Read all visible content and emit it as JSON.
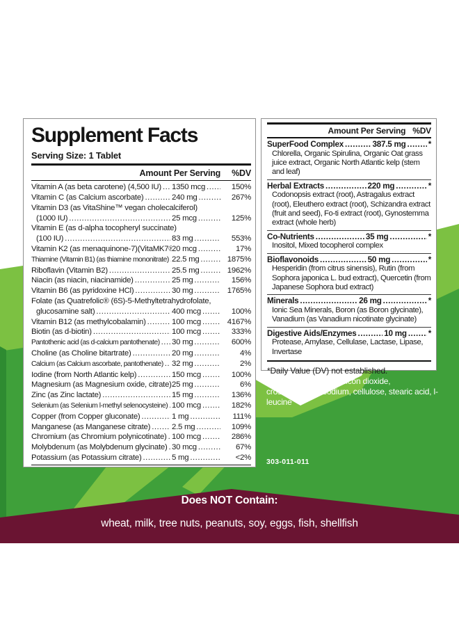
{
  "colors": {
    "green_light": "#7CC142",
    "green_main": "#3FA03A",
    "green_dark": "#2E8B31",
    "maroon": "#6A1432"
  },
  "left_panel": {
    "title": "Supplement Facts",
    "serving": "Serving Size: 1 Tablet",
    "col_amount": "Amount Per Serving",
    "col_dv": "%DV",
    "rows": [
      {
        "name": "Vitamin A (as beta carotene) (4,500 IU)",
        "amount": "1350 mcg",
        "dv": "150%"
      },
      {
        "name": "Vitamin C (as Calcium ascorbate)",
        "amount": "240 mg",
        "dv": "267%"
      },
      {
        "name": "Vitamin D3  (as VitaShine™ vegan cholecalciferol)",
        "name2": "(1000 IU)",
        "amount": "25 mcg",
        "dv": "125%"
      },
      {
        "name": "Vitamin E (as d-alpha tocopheryl succinate)",
        "name2": "(100 IU)",
        "amount": "83 mg",
        "dv": "553%"
      },
      {
        "name": "Vitamin K2 (as menaquinone-7)(VitaMK7®)",
        "amount": "20 mcg",
        "dv": "17%"
      },
      {
        "name": "Thiamine (Vitamin B1) (as thiamine mononitrate)",
        "tight": true,
        "amount": "22.5 mg",
        "dv": "1875%"
      },
      {
        "name": "Riboflavin (Vitamin B2)",
        "amount": "25.5 mg",
        "dv": "1962%"
      },
      {
        "name": "Niacin (as niacin, niacinamide)",
        "amount": "25 mg",
        "dv": "156%"
      },
      {
        "name": "Vitamin B6 (as pyridoxine HCl)",
        "amount": "30 mg",
        "dv": "1765%"
      },
      {
        "name": "Folate (as Quatrefolic® (6S)-5-Methyltetrahydrofolate,",
        "name2": "glucosamine salt)",
        "amount": "400 mcg",
        "dv": "100%"
      },
      {
        "name": "Vitamin B12 (as methylcobalamin)",
        "amount": "100 mcg",
        "dv": "4167%"
      },
      {
        "name": "Biotin (as d-biotin)",
        "amount": "100 mcg",
        "dv": "333%"
      },
      {
        "name": "Pantothenic acid (as d-calcium pantothenate)",
        "tight": true,
        "amount": "30 mg",
        "dv": "600%"
      },
      {
        "name": "Choline (as Choline bitartrate)",
        "amount": "20 mg",
        "dv": "4%"
      },
      {
        "name": "Calcium (as Calcium ascorbate, pantothenate)",
        "tight": true,
        "amount": "32 mg",
        "dv": "2%"
      },
      {
        "name": "Iodine (from North Atlantic kelp)",
        "amount": "150 mcg",
        "dv": "100%"
      },
      {
        "name": "Magnesium (as Magnesium oxide, citrate)",
        "amount": "25 mg",
        "dv": "6%"
      },
      {
        "name": "Zinc (as Zinc lactate)",
        "amount": "15 mg",
        "dv": "136%"
      },
      {
        "name": "Selenium (as Selenium l-methyl selenocysteine)",
        "tight": true,
        "amount": "100 mcg",
        "dv": "182%"
      },
      {
        "name": "Copper (from Copper gluconate)",
        "amount": "1 mg",
        "dv": "111%"
      },
      {
        "name": "Manganese (as Manganese citrate)",
        "amount": "2.5 mg",
        "dv": "109%"
      },
      {
        "name": "Chromium (as Chromium polynicotinate)",
        "amount": "100 mcg",
        "dv": "286%"
      },
      {
        "name": "Molybdenum (as Molybdenum glycinate)",
        "amount": "30 mcg",
        "dv": "67%"
      },
      {
        "name": "Potassium (as Potassium citrate)",
        "amount": "5 mg",
        "dv": "<2%"
      }
    ]
  },
  "right_panel": {
    "col_amount": "Amount Per Serving",
    "col_dv": "%DV",
    "sections": [
      {
        "name": "SuperFood Complex",
        "amount": "387.5 mg",
        "dv": "*",
        "desc": "Chlorella, Organic Spirulina, Organic Oat grass juice extract, Organic North Atlantic kelp (stem and leaf)"
      },
      {
        "name": "Herbal Extracts",
        "amount": "220 mg",
        "dv": "*",
        "desc": "Codonopsis extract (root), Astragalus extract (root), Eleuthero extract (root), Schizandra extract (fruit and seed), Fo-ti extract (root), Gynostemma extract (whole herb)"
      },
      {
        "name": "Co-Nutrients",
        "amount": "35 mg",
        "dv": "*",
        "desc": "Inositol, Mixed tocopherol complex"
      },
      {
        "name": "Bioflavonoids",
        "amount": "50 mg",
        "dv": "*",
        "desc": "Hesperidin (from citrus sinensis), Rutin (from Sophora japonica L. bud extract), Quercetin (from Japanese Sophora bud extract)"
      },
      {
        "name": "Minerals",
        "amount": "26 mg",
        "dv": "*",
        "desc": "Ionic Sea Minerals, Boron (as Boron glycinate), Vanadium (as Vanadium nicotinate glycinate)"
      },
      {
        "name": "Digestive Aids/Enzymes",
        "amount": "10 mg",
        "dv": "*",
        "desc": "Protease, Amylase, Cellulase, Lactase, Lipase, Invertase"
      }
    ],
    "footnote": "*Daily Value (DV) not established."
  },
  "other_ingredients": {
    "label": "Other Ingredients:",
    "text": " silicon dioxide, croscarmellose sodium, cellulose, stearic acid, l-leucine"
  },
  "product_code": "303-011-011",
  "does_not_contain": {
    "title": "Does NOT Contain:",
    "items": "wheat, milk, tree nuts, peanuts, soy, eggs, fish, shellfish"
  }
}
